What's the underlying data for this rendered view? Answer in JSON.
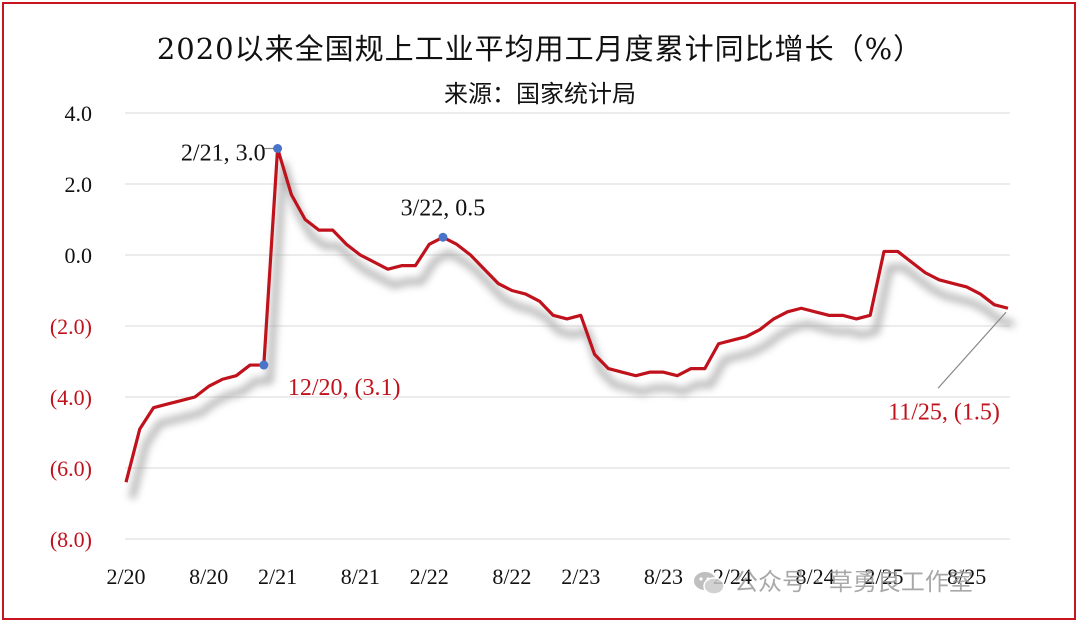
{
  "chart_data": {
    "type": "line",
    "title": "2020以来全国规上工业平均用工月度累计同比增长（%）",
    "subtitle": "来源：国家统计局",
    "ylim": [
      -8,
      4
    ],
    "ytick_values": [
      4,
      2,
      0,
      -2,
      -4,
      -6,
      -8
    ],
    "ytick_labels": [
      "4.0",
      "2.0",
      "0.0",
      "(2.0)",
      "(4.0)",
      "(6.0)",
      "(8.0)"
    ],
    "xtick_labels": [
      "2/20",
      "8/20",
      "2/21",
      "8/21",
      "2/22",
      "8/22",
      "2/23",
      "8/23",
      "2/24",
      "8/24",
      "2/25",
      "8/25"
    ],
    "grid": true,
    "series": [
      {
        "color": "#c0121c",
        "x": [
          "2/20",
          "3/20",
          "4/20",
          "5/20",
          "6/20",
          "7/20",
          "8/20",
          "9/20",
          "10/20",
          "11/20",
          "12/20",
          "2/21",
          "3/21",
          "4/21",
          "5/21",
          "6/21",
          "7/21",
          "8/21",
          "9/21",
          "10/21",
          "11/21",
          "12/21",
          "2/22",
          "3/22",
          "4/22",
          "5/22",
          "6/22",
          "7/22",
          "8/22",
          "9/22",
          "10/22",
          "11/22",
          "12/22",
          "2/23",
          "3/23",
          "4/23",
          "5/23",
          "6/23",
          "7/23",
          "8/23",
          "9/23",
          "10/23",
          "11/23",
          "12/23",
          "2/24",
          "3/24",
          "4/24",
          "5/24",
          "6/24",
          "7/24",
          "8/24",
          "9/24",
          "10/24",
          "11/24",
          "12/24",
          "2/25",
          "3/25",
          "4/25",
          "5/25",
          "6/25",
          "7/25",
          "8/25",
          "9/25",
          "10/25",
          "11/25"
        ],
        "values": [
          -6.4,
          -4.9,
          -4.3,
          -4.2,
          -4.1,
          -4.0,
          -3.7,
          -3.5,
          -3.4,
          -3.1,
          -3.1,
          3.0,
          1.7,
          1.0,
          0.7,
          0.7,
          0.3,
          0.0,
          -0.2,
          -0.4,
          -0.3,
          -0.3,
          0.3,
          0.5,
          0.3,
          0.0,
          -0.4,
          -0.8,
          -1.0,
          -1.1,
          -1.3,
          -1.7,
          -1.8,
          -1.7,
          -2.8,
          -3.2,
          -3.3,
          -3.4,
          -3.3,
          -3.3,
          -3.4,
          -3.2,
          -3.2,
          -2.5,
          -2.4,
          -2.3,
          -2.1,
          -1.8,
          -1.6,
          -1.5,
          -1.6,
          -1.7,
          -1.7,
          -1.8,
          -1.7,
          0.1,
          0.1,
          -0.2,
          -0.5,
          -0.7,
          -0.8,
          -0.9,
          -1.1,
          -1.4,
          -1.5
        ]
      }
    ],
    "annotations": [
      {
        "x": "2/21",
        "y": 3.0,
        "label": "2/21, 3.0",
        "color": "#111111"
      },
      {
        "x": "3/22",
        "y": 0.5,
        "label": "3/22, 0.5",
        "color": "#111111"
      },
      {
        "x": "12/20",
        "y": -3.1,
        "label": "12/20, (3.1)",
        "color": "#c0121c"
      },
      {
        "x": "11/25",
        "y": -1.5,
        "label": "11/25, (1.5)",
        "color": "#c0121c"
      }
    ],
    "colors": {
      "line": "#c0121c",
      "marker": "#4a74c9",
      "negative_label": "#c0121c",
      "grid": "#d9d9d9",
      "frame": "#c8141e"
    }
  },
  "watermark": {
    "text": "公众号 · 草勇良工作室",
    "icon": "wechat-icon"
  }
}
